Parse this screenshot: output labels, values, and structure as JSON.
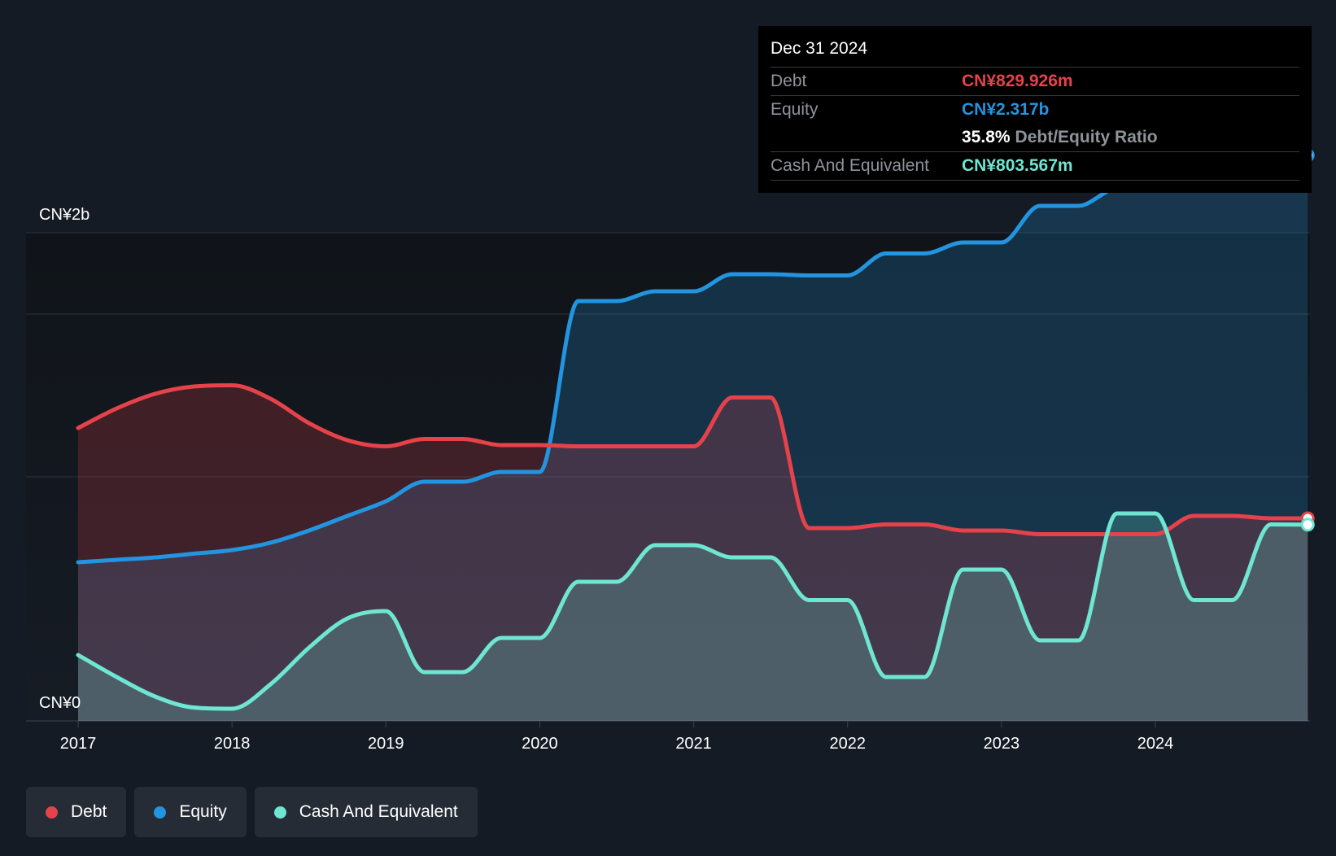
{
  "tooltip": {
    "date": "Dec 31 2024",
    "debt_label": "Debt",
    "debt_value": "CN¥829.926m",
    "equity_label": "Equity",
    "equity_value": "CN¥2.317b",
    "ratio_value": "35.8%",
    "ratio_label": "Debt/Equity Ratio",
    "cash_label": "Cash And Equivalent",
    "cash_value": "CN¥803.567m"
  },
  "legend": [
    {
      "label": "Debt",
      "color": "#e5424a"
    },
    {
      "label": "Equity",
      "color": "#2394df"
    },
    {
      "label": "Cash And Equivalent",
      "color": "#6ee6d2"
    }
  ],
  "colors": {
    "debt": "#e5424a",
    "equity": "#2394df",
    "cash": "#6ee6d2"
  },
  "chart_data": {
    "type": "area",
    "y_tick_labels": [
      "CN¥2b",
      "CN¥0"
    ],
    "ylim": [
      0,
      2400
    ],
    "xlim": [
      2017,
      2025
    ],
    "x_ticks": [
      2017,
      2018,
      2019,
      2020,
      2021,
      2022,
      2023,
      2024
    ],
    "grid": true,
    "series": [
      {
        "name": "Debt",
        "x": [
          2017.0,
          2017.25,
          2017.5,
          2017.75,
          2018.0,
          2018.25,
          2018.5,
          2018.75,
          2019.0,
          2019.25,
          2019.5,
          2019.75,
          2020.0,
          2020.25,
          2020.5,
          2020.75,
          2021.0,
          2021.25,
          2021.5,
          2021.75,
          2022.0,
          2022.25,
          2022.5,
          2022.75,
          2023.0,
          2023.25,
          2023.5,
          2023.75,
          2024.0,
          2024.25,
          2024.5,
          2024.75,
          2024.99
        ],
        "values": [
          1200,
          1280,
          1340,
          1370,
          1375,
          1320,
          1220,
          1150,
          1125,
          1155,
          1155,
          1130,
          1130,
          1125,
          1125,
          1125,
          1125,
          1325,
          1325,
          790,
          790,
          805,
          805,
          780,
          780,
          765,
          765,
          765,
          765,
          840,
          840,
          830,
          830
        ]
      },
      {
        "name": "Equity",
        "x": [
          2017.0,
          2017.25,
          2017.5,
          2017.75,
          2018.0,
          2018.25,
          2018.5,
          2018.75,
          2019.0,
          2019.25,
          2019.5,
          2019.75,
          2020.0,
          2020.25,
          2020.5,
          2020.75,
          2021.0,
          2021.25,
          2021.5,
          2021.75,
          2022.0,
          2022.25,
          2022.5,
          2022.75,
          2023.0,
          2023.25,
          2023.5,
          2023.75,
          2024.0,
          2024.25,
          2024.5,
          2024.75,
          2024.99
        ],
        "values": [
          650,
          660,
          670,
          685,
          700,
          730,
          780,
          840,
          900,
          980,
          980,
          1020,
          1020,
          1720,
          1720,
          1760,
          1760,
          1830,
          1830,
          1825,
          1825,
          1915,
          1915,
          1960,
          1960,
          2110,
          2110,
          2180,
          2180,
          2315,
          2315,
          2318,
          2317
        ]
      },
      {
        "name": "Cash And Equivalent",
        "x": [
          2017.0,
          2017.25,
          2017.5,
          2017.75,
          2018.0,
          2018.25,
          2018.5,
          2018.75,
          2019.0,
          2019.25,
          2019.5,
          2019.75,
          2020.0,
          2020.25,
          2020.5,
          2020.75,
          2021.0,
          2021.25,
          2021.5,
          2021.75,
          2022.0,
          2022.25,
          2022.5,
          2022.75,
          2023.0,
          2023.25,
          2023.5,
          2023.75,
          2024.0,
          2024.25,
          2024.5,
          2024.75,
          2024.99
        ],
        "values": [
          270,
          180,
          100,
          55,
          50,
          150,
          300,
          420,
          450,
          200,
          200,
          340,
          340,
          570,
          570,
          720,
          720,
          670,
          670,
          495,
          495,
          180,
          180,
          620,
          620,
          330,
          330,
          850,
          850,
          495,
          495,
          805,
          804
        ]
      }
    ]
  }
}
